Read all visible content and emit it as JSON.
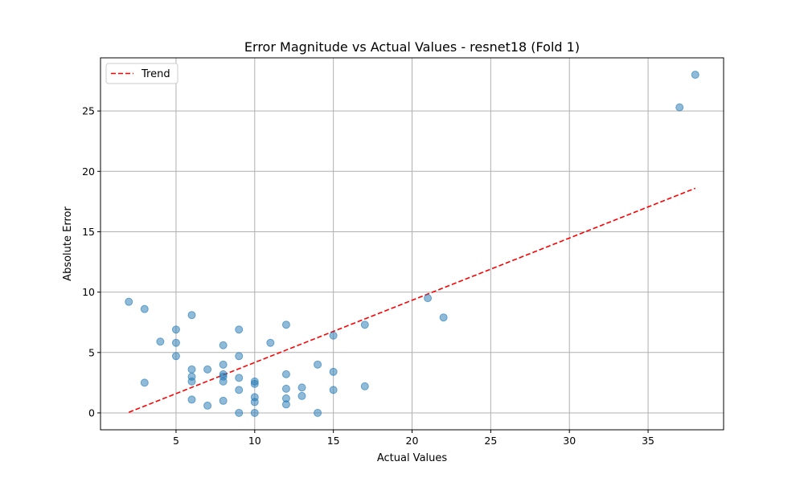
{
  "chart_data": {
    "type": "scatter",
    "title": "Error Magnitude vs Actual Values - resnet18 (Fold 1)",
    "xlabel": "Actual Values",
    "ylabel": "Absolute Error",
    "xlim": [
      0.2,
      39.8
    ],
    "ylim": [
      -1.4,
      29.4
    ],
    "xticks": [
      5,
      10,
      15,
      20,
      25,
      30,
      35
    ],
    "yticks": [
      0,
      5,
      10,
      15,
      20,
      25
    ],
    "grid": true,
    "legend_position": "top-left",
    "series": [
      {
        "type": "scatter",
        "color": "#1f77b4",
        "points": [
          [
            2,
            9.2
          ],
          [
            3,
            8.6
          ],
          [
            3,
            2.5
          ],
          [
            4,
            5.9
          ],
          [
            5,
            6.9
          ],
          [
            5,
            5.8
          ],
          [
            5,
            4.7
          ],
          [
            6,
            8.1
          ],
          [
            6,
            3.6
          ],
          [
            6,
            3.0
          ],
          [
            6,
            2.6
          ],
          [
            6,
            1.1
          ],
          [
            7,
            3.6
          ],
          [
            7,
            0.6
          ],
          [
            8,
            5.6
          ],
          [
            8,
            4.0
          ],
          [
            8,
            3.2
          ],
          [
            8,
            3.0
          ],
          [
            8,
            2.6
          ],
          [
            8,
            1.0
          ],
          [
            9,
            6.9
          ],
          [
            9,
            4.7
          ],
          [
            9,
            2.9
          ],
          [
            9,
            1.9
          ],
          [
            9,
            0.0
          ],
          [
            10,
            2.6
          ],
          [
            10,
            2.4
          ],
          [
            10,
            1.3
          ],
          [
            10,
            0.9
          ],
          [
            10,
            0.0
          ],
          [
            11,
            5.8
          ],
          [
            12,
            7.3
          ],
          [
            12,
            3.2
          ],
          [
            12,
            2.0
          ],
          [
            12,
            1.2
          ],
          [
            12,
            0.7
          ],
          [
            13,
            2.1
          ],
          [
            13,
            1.4
          ],
          [
            14,
            4.0
          ],
          [
            14,
            0.0
          ],
          [
            15,
            6.4
          ],
          [
            15,
            3.4
          ],
          [
            15,
            1.9
          ],
          [
            17,
            7.3
          ],
          [
            17,
            2.2
          ],
          [
            21,
            9.5
          ],
          [
            22,
            7.9
          ],
          [
            37,
            25.3
          ],
          [
            38,
            28.0
          ]
        ]
      },
      {
        "type": "line",
        "name": "Trend",
        "color": "#ff0000",
        "dash": "dashed",
        "points": [
          [
            2,
            0.05
          ],
          [
            38,
            18.6
          ]
        ]
      }
    ]
  }
}
